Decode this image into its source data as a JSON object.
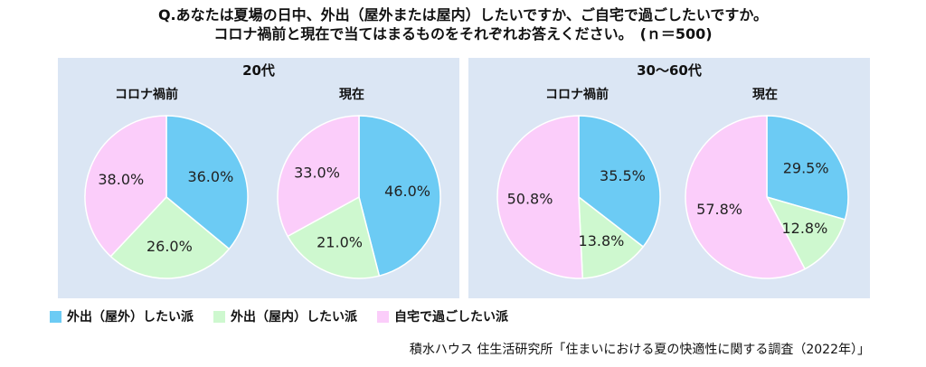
{
  "title_line1": "Q.あなたは夏場の日中、外出（屋外または屋内）したいですか、ご自宅で過ごしたいですか。",
  "title_line2": "コロナ禍前と現在で当てはまるものをそれぞれお答えください。　(ｎ＝500)",
  "colors": {
    "outdoor": "#6ccbf4",
    "indoor": "#cef8cf",
    "home": "#fbcdfa"
  },
  "chart_data": [
    {
      "type": "pie",
      "group": "20代",
      "pies": [
        {
          "label": "コロナ禍前",
          "values": [
            36.0,
            26.0,
            38.0
          ],
          "value_labels": [
            "36.0%",
            "26.0%",
            "38.0%"
          ]
        },
        {
          "label": "現在",
          "values": [
            46.0,
            21.0,
            33.0
          ],
          "value_labels": [
            "46.0%",
            "21.0%",
            "33.0%"
          ]
        }
      ],
      "categories": [
        "外出（屋外）したい派",
        "外出（屋内）したい派",
        "自宅で過ごしたい派"
      ]
    },
    {
      "type": "pie",
      "group": "30～60代",
      "pies": [
        {
          "label": "コロナ禍前",
          "values": [
            35.5,
            13.8,
            50.8
          ],
          "value_labels": [
            "35.5%",
            "13.8%",
            "50.8%"
          ]
        },
        {
          "label": "現在",
          "values": [
            29.5,
            12.8,
            57.8
          ],
          "value_labels": [
            "29.5%",
            "12.8%",
            "57.8%"
          ]
        }
      ],
      "categories": [
        "外出（屋外）したい派",
        "外出（屋内）したい派",
        "自宅で過ごしたい派"
      ]
    }
  ],
  "legend": [
    {
      "label": "外出（屋外）したい派",
      "color": "#6ccbf4"
    },
    {
      "label": "外出（屋内）したい派",
      "color": "#cef8cf"
    },
    {
      "label": "自宅で過ごしたい派",
      "color": "#fbcdfa"
    }
  ],
  "source": "積水ハウス 住生活研究所「住まいにおける夏の快適性に関する調査（2022年）」"
}
